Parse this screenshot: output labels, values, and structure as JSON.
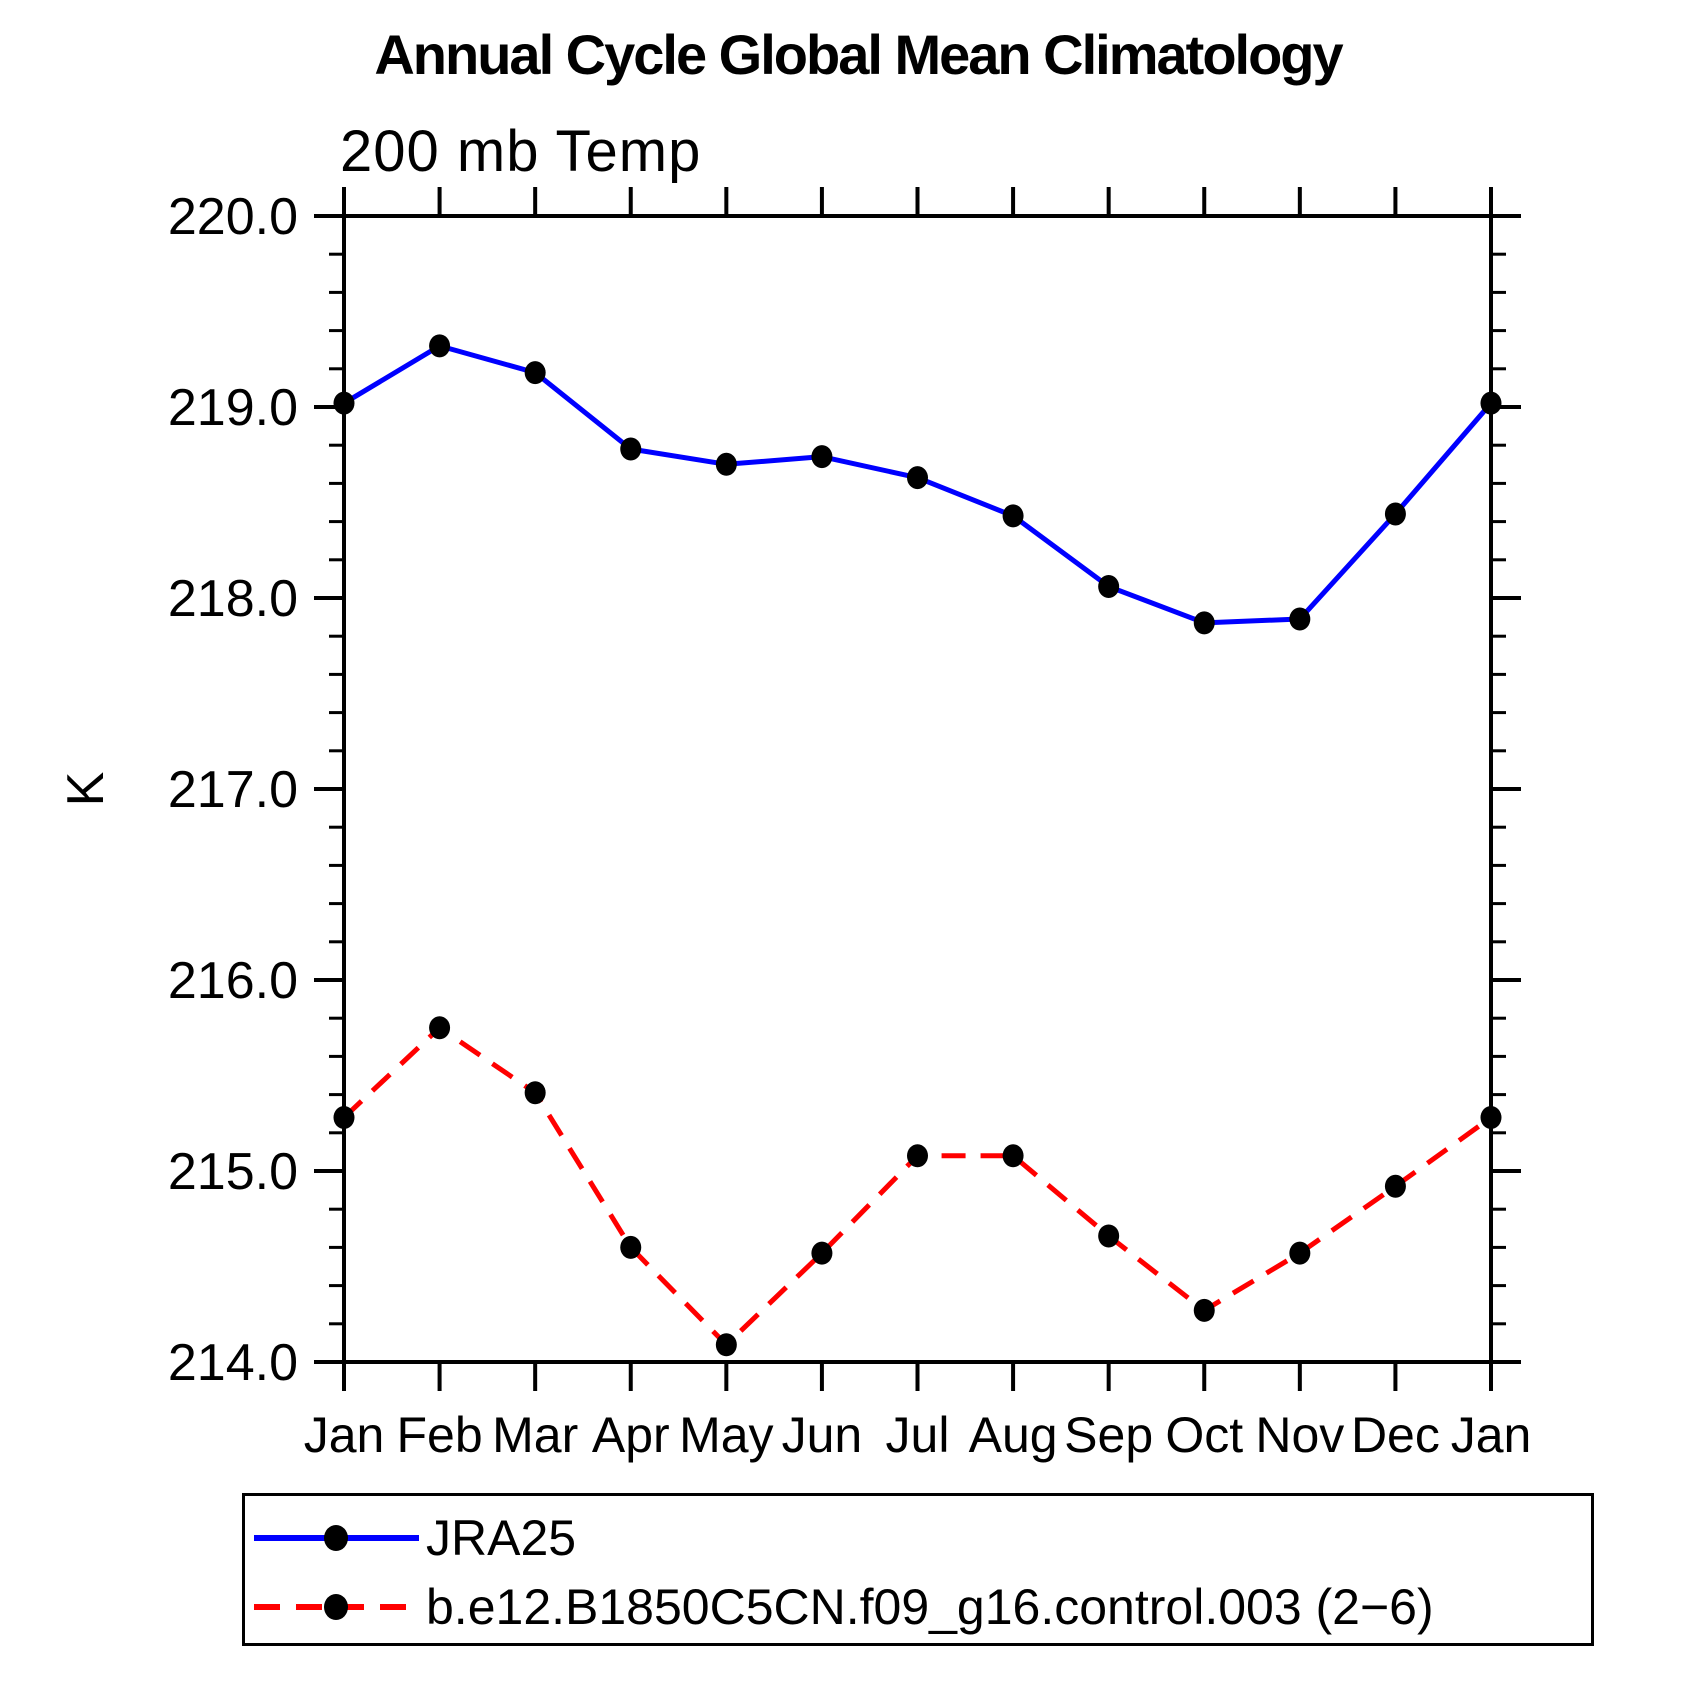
{
  "title": "Annual Cycle Global Mean Climatology",
  "subtitle": "200 mb Temp",
  "chart_data": {
    "type": "line",
    "title": "Annual Cycle Global Mean Climatology",
    "subtitle": "200 mb Temp",
    "ylabel": "K",
    "xlabel": "",
    "ylim": [
      214.0,
      220.0
    ],
    "y_major_step": 1.0,
    "y_minor_step": 0.2,
    "y_tick_labels": [
      "220.0",
      "219.0",
      "218.0",
      "217.0",
      "216.0",
      "215.0",
      "214.0"
    ],
    "categories": [
      "Jan",
      "Feb",
      "Mar",
      "Apr",
      "May",
      "Jun",
      "Jul",
      "Aug",
      "Sep",
      "Oct",
      "Nov",
      "Dec",
      "Jan"
    ],
    "grid": false,
    "legend_position": "bottom-left",
    "frame_color": "#000000",
    "marker_color": "#000000",
    "series": [
      {
        "name": "JRA25",
        "color": "#0000ff",
        "style": "solid",
        "marker": "circle",
        "values": [
          219.02,
          219.32,
          219.18,
          218.78,
          218.7,
          218.74,
          218.63,
          218.43,
          218.06,
          217.87,
          217.89,
          218.44,
          219.02
        ]
      },
      {
        "name": "b.e12.B1850C5CN.f09_g16.control.003 (2−6)",
        "color": "#ff0000",
        "style": "dashed",
        "marker": "circle",
        "values": [
          215.28,
          215.75,
          215.41,
          214.6,
          214.09,
          214.57,
          215.08,
          215.08,
          214.66,
          214.27,
          214.57,
          214.92,
          215.28
        ]
      }
    ]
  }
}
